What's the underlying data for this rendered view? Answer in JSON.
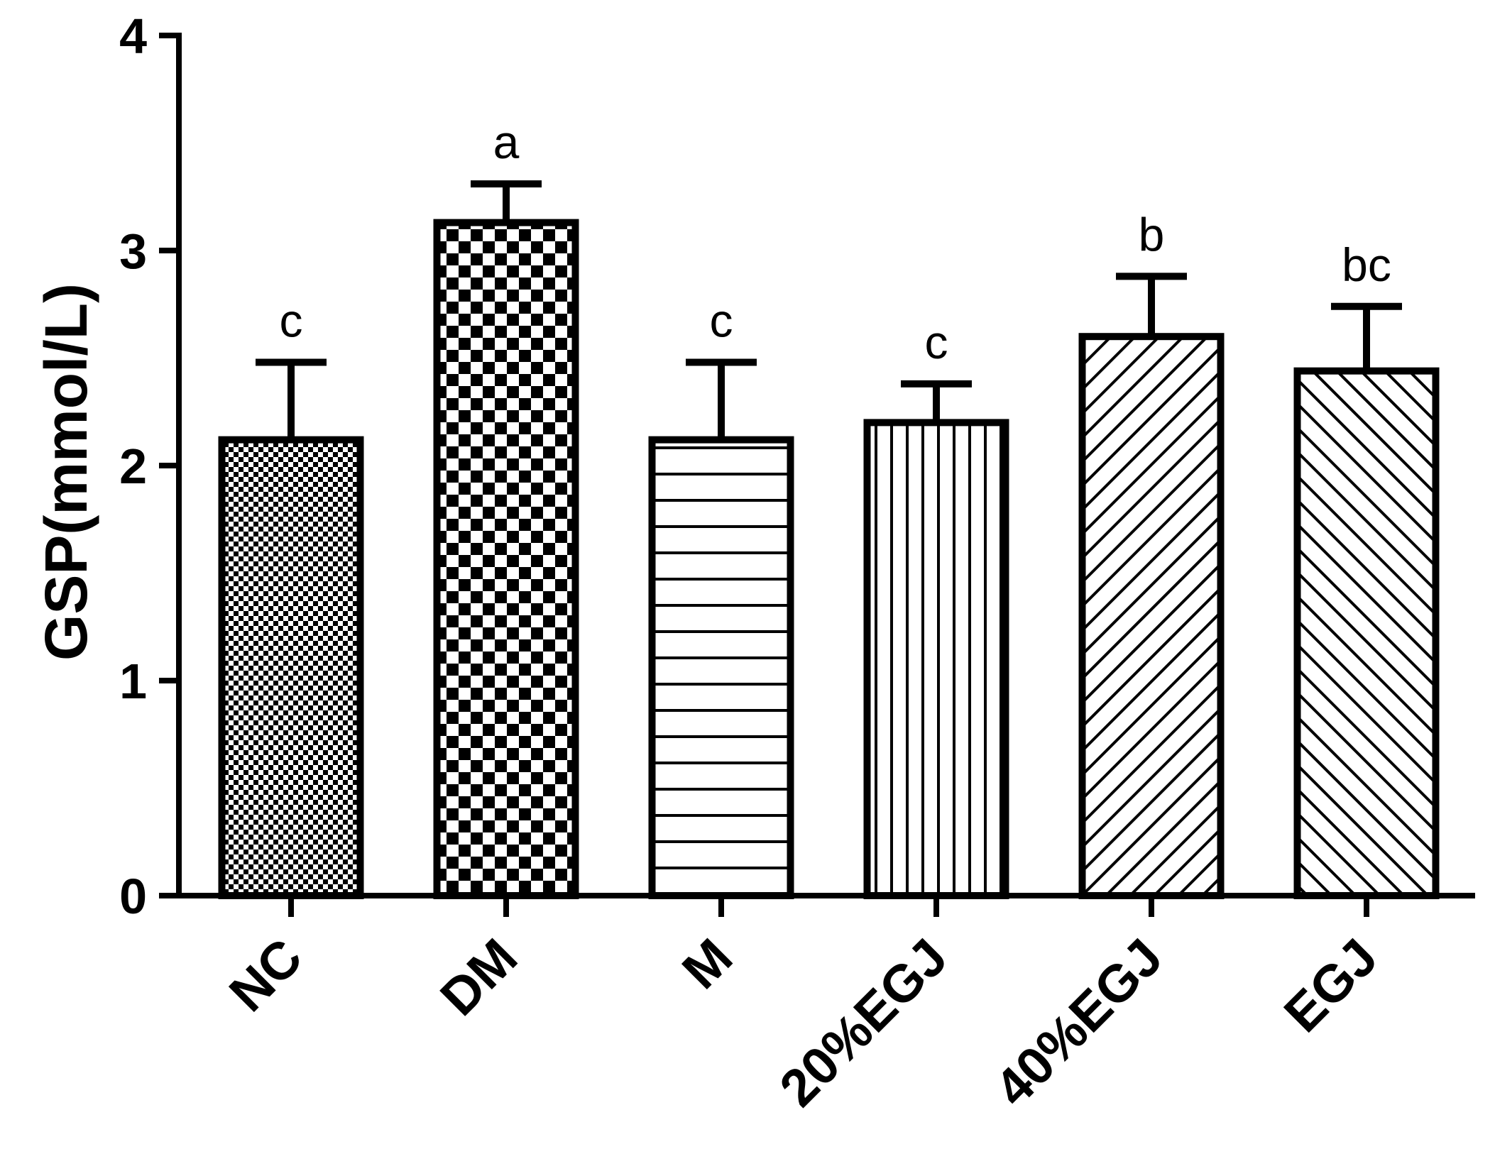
{
  "chart_data": {
    "type": "bar",
    "title": "",
    "xlabel": "",
    "ylabel": "GSP(mmol/L)",
    "ylim": [
      0,
      4
    ],
    "yticks": [
      0,
      1,
      2,
      3,
      4
    ],
    "grid": false,
    "categories": [
      "NC",
      "DM",
      "M",
      "20%EGJ",
      "40%EGJ",
      "EGJ"
    ],
    "values": [
      2.12,
      3.13,
      2.12,
      2.2,
      2.6,
      2.44
    ],
    "errors": [
      0.36,
      0.18,
      0.36,
      0.18,
      0.28,
      0.3
    ],
    "significance": [
      "c",
      "a",
      "c",
      "c",
      "b",
      "bc"
    ],
    "fill_patterns": [
      "fine-checker",
      "coarse-checker",
      "horizontal-lines",
      "vertical-lines",
      "diagonal-lines",
      "back-diagonal-lines"
    ]
  }
}
